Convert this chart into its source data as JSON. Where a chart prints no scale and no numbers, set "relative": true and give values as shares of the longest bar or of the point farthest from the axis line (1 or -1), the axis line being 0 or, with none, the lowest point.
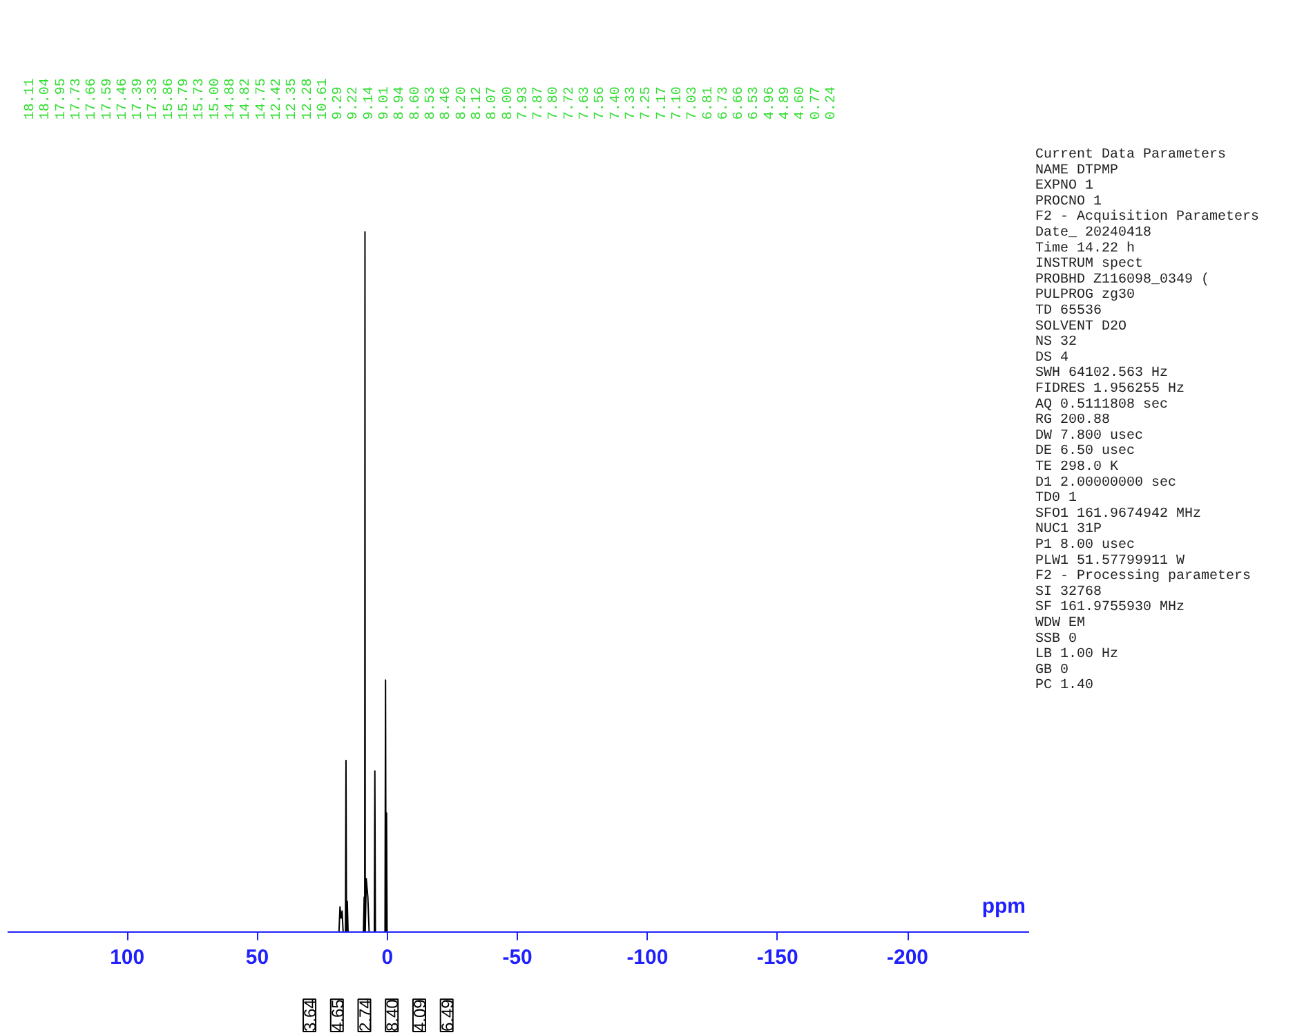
{
  "chart_data": [
    {
      "type": "line",
      "relative": true,
      "xlabel": "ppm",
      "xlim": [
        146,
        -247
      ],
      "xticks": [
        100,
        50,
        0,
        -50,
        -100,
        -150,
        -200
      ],
      "grid": false,
      "x": [
        146,
        20,
        18.6,
        18.2,
        17.8,
        17.4,
        17.0,
        16.1,
        15.9,
        15.7,
        15.4,
        15.1,
        9.2,
        8.9,
        8.7,
        8.6,
        8.5,
        8.1,
        7.5,
        7.0,
        5.0,
        4.8,
        4.6,
        0.9,
        0.7,
        0.5,
        0.3,
        0.1,
        -247
      ],
      "series": [
        {
          "color": "#000000",
          "values": [
            0,
            0,
            0,
            0.036,
            0.02,
            0.03,
            0,
            0,
            0.245,
            0,
            0.044,
            0,
            0,
            0.05,
            0,
            1.0,
            0,
            0.076,
            0.05,
            0,
            0,
            0.23,
            0,
            0,
            0.36,
            0,
            0.17,
            0,
            0
          ]
        }
      ],
      "annotations": [
        "18.11",
        "18.04",
        "17.95",
        "17.73",
        "17.66",
        "17.59",
        "17.46",
        "17.39",
        "17.33",
        "15.86",
        "15.79",
        "15.73",
        "15.00",
        "14.88",
        "14.82",
        "14.75",
        "12.42",
        "12.35",
        "12.28",
        "10.61",
        "9.29",
        "9.22",
        "9.14",
        "9.01",
        "8.94",
        "8.60",
        "8.53",
        "8.46",
        "8.20",
        "8.12",
        "8.07",
        "8.00",
        "7.93",
        "7.87",
        "7.80",
        "7.72",
        "7.63",
        "7.56",
        "7.40",
        "7.33",
        "7.25",
        "7.17",
        "7.10",
        "7.03",
        "6.81",
        "6.73",
        "6.66",
        "6.53",
        "4.96",
        "4.89",
        "4.60",
        "0.77",
        "0.24"
      ]
    },
    {
      "type": "other",
      "annotations": [
        "Current Data Parameters",
        "NAME DTPMP",
        "EXPNO 1",
        "PROCNO 1",
        "F2 - Acquisition Parameters",
        "Date_ 20240418",
        "Time 14.22 h",
        "INSTRUM spect",
        "PROBHD Z116098_0349 (",
        "PULPROG zg30",
        "TD 65536",
        "SOLVENT D2O",
        "NS 32",
        "DS 4",
        "SWH 64102.563 Hz",
        "FIDRES 1.956255 Hz",
        "AQ 0.5111808 sec",
        "RG 200.88",
        "DW 7.800 usec",
        "DE 6.50 usec",
        "TE 298.0 K",
        "D1 2.00000000 sec",
        "TD0 1",
        "SFO1 161.9674942 MHz",
        "NUC1 31P",
        "P1 8.00 usec",
        "PLW1 51.57799911 W",
        "F2 - Processing parameters",
        "SI 32768",
        "SF 161.9755930 MHz",
        "WDW EM",
        "SSB 0",
        "LB 1.00 Hz",
        "GB 0",
        "PC 1.40"
      ]
    },
    {
      "type": "other",
      "annotations": [
        "3.64",
        "4.65",
        "2.74",
        "8.40",
        "4.09",
        "6.49"
      ]
    }
  ]
}
